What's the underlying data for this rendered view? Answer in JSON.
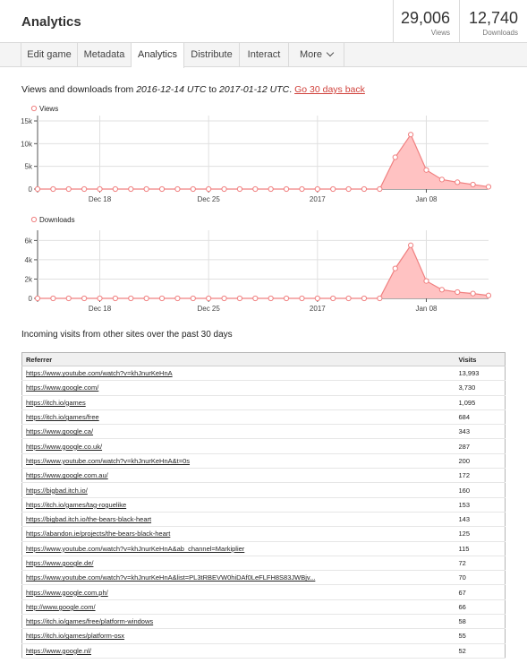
{
  "header": {
    "title": "Analytics",
    "views": {
      "value": "29,006",
      "label": "Views"
    },
    "downloads": {
      "value": "12,740",
      "label": "Downloads"
    }
  },
  "tabs": [
    {
      "label": "Edit game",
      "active": false
    },
    {
      "label": "Metadata",
      "active": false
    },
    {
      "label": "Analytics",
      "active": true
    },
    {
      "label": "Distribute",
      "active": false
    },
    {
      "label": "Interact",
      "active": false
    },
    {
      "label": "More",
      "active": false
    }
  ],
  "range": {
    "prefix": "Views and downloads from ",
    "start": "2016-12-14 UTC",
    "middle": " to ",
    "end": "2017-01-12 UTC",
    "suffix": ". ",
    "link": "Go 30 days back"
  },
  "colors": {
    "accent": "#e5544a",
    "series_stroke": "#f08080",
    "series_fill": "#ffc2c2",
    "grid": "#e0e0e0"
  },
  "chart_data": [
    {
      "type": "area",
      "legend": "Views",
      "x": [
        "2016-12-14",
        "2016-12-15",
        "2016-12-16",
        "2016-12-17",
        "2016-12-18",
        "2016-12-19",
        "2016-12-20",
        "2016-12-21",
        "2016-12-22",
        "2016-12-23",
        "2016-12-24",
        "2016-12-25",
        "2016-12-26",
        "2016-12-27",
        "2016-12-28",
        "2016-12-29",
        "2016-12-30",
        "2016-12-31",
        "2017-01-01",
        "2017-01-02",
        "2017-01-03",
        "2017-01-04",
        "2017-01-05",
        "2017-01-06",
        "2017-01-07",
        "2017-01-08",
        "2017-01-09",
        "2017-01-10",
        "2017-01-11",
        "2017-01-12"
      ],
      "values": [
        0,
        0,
        0,
        0,
        0,
        0,
        0,
        0,
        0,
        0,
        0,
        0,
        0,
        0,
        0,
        0,
        0,
        0,
        0,
        0,
        0,
        0,
        0,
        7000,
        12000,
        4200,
        2100,
        1500,
        1000,
        500
      ],
      "yticks": [
        "0",
        "5k",
        "10k",
        "15k"
      ],
      "ylim": [
        0,
        15000
      ],
      "xticks": [
        {
          "date": "2016-12-18",
          "label": "Dec 18"
        },
        {
          "date": "2016-12-25",
          "label": "Dec 25"
        },
        {
          "date": "2017-01-01",
          "label": "2017"
        },
        {
          "date": "2017-01-08",
          "label": "Jan 08"
        }
      ],
      "grid": true,
      "legend_position": "top-left"
    },
    {
      "type": "area",
      "legend": "Downloads",
      "x": [
        "2016-12-14",
        "2016-12-15",
        "2016-12-16",
        "2016-12-17",
        "2016-12-18",
        "2016-12-19",
        "2016-12-20",
        "2016-12-21",
        "2016-12-22",
        "2016-12-23",
        "2016-12-24",
        "2016-12-25",
        "2016-12-26",
        "2016-12-27",
        "2016-12-28",
        "2016-12-29",
        "2016-12-30",
        "2016-12-31",
        "2017-01-01",
        "2017-01-02",
        "2017-01-03",
        "2017-01-04",
        "2017-01-05",
        "2017-01-06",
        "2017-01-07",
        "2017-01-08",
        "2017-01-09",
        "2017-01-10",
        "2017-01-11",
        "2017-01-12"
      ],
      "values": [
        0,
        0,
        0,
        0,
        0,
        0,
        0,
        0,
        0,
        0,
        0,
        0,
        0,
        0,
        0,
        0,
        0,
        0,
        0,
        0,
        0,
        0,
        0,
        3100,
        5500,
        1800,
        900,
        650,
        500,
        300
      ],
      "yticks": [
        "0",
        "2k",
        "4k",
        "6k"
      ],
      "ylim": [
        0,
        6500
      ],
      "xticks": [
        {
          "date": "2016-12-18",
          "label": "Dec 18"
        },
        {
          "date": "2016-12-25",
          "label": "Dec 25"
        },
        {
          "date": "2017-01-01",
          "label": "2017"
        },
        {
          "date": "2017-01-08",
          "label": "Jan 08"
        }
      ],
      "grid": true,
      "legend_position": "top-left"
    }
  ],
  "incoming": {
    "title": "Incoming visits from other sites over the past 30 days",
    "headers": {
      "referrer": "Referrer",
      "visits": "Visits"
    },
    "rows": [
      {
        "referrer": "https://www.youtube.com/watch?v=khJnurKeHnA",
        "visits": "13,993"
      },
      {
        "referrer": "https://www.google.com/",
        "visits": "3,730"
      },
      {
        "referrer": "https://itch.io/games",
        "visits": "1,095"
      },
      {
        "referrer": "https://itch.io/games/free",
        "visits": "684"
      },
      {
        "referrer": "https://www.google.ca/",
        "visits": "343"
      },
      {
        "referrer": "https://www.google.co.uk/",
        "visits": "287"
      },
      {
        "referrer": "https://www.youtube.com/watch?v=khJnurKeHnA&t=0s",
        "visits": "200"
      },
      {
        "referrer": "https://www.google.com.au/",
        "visits": "172"
      },
      {
        "referrer": "https://bigbad.itch.io/",
        "visits": "160"
      },
      {
        "referrer": "https://itch.io/games/tag-roguelike",
        "visits": "153"
      },
      {
        "referrer": "https://bigbad.itch.io/the-bears-black-heart",
        "visits": "143"
      },
      {
        "referrer": "https://abandon.ie/projects/the-bears-black-heart",
        "visits": "125"
      },
      {
        "referrer": "https://www.youtube.com/watch?v=khJnurKeHnA&ab_channel=Markiplier",
        "visits": "115"
      },
      {
        "referrer": "https://www.google.de/",
        "visits": "72"
      },
      {
        "referrer": "https://www.youtube.com/watch?v=khJnurKeHnA&list=PL3tRBEVW0hiDAf0LeFLFH8S83JWBjv...",
        "visits": "70"
      },
      {
        "referrer": "https://www.google.com.ph/",
        "visits": "67"
      },
      {
        "referrer": "http://www.google.com/",
        "visits": "66"
      },
      {
        "referrer": "https://itch.io/games/free/platform-windows",
        "visits": "58"
      },
      {
        "referrer": "https://itch.io/games/platform-osx",
        "visits": "55"
      },
      {
        "referrer": "https://www.google.nl/",
        "visits": "52"
      }
    ]
  }
}
